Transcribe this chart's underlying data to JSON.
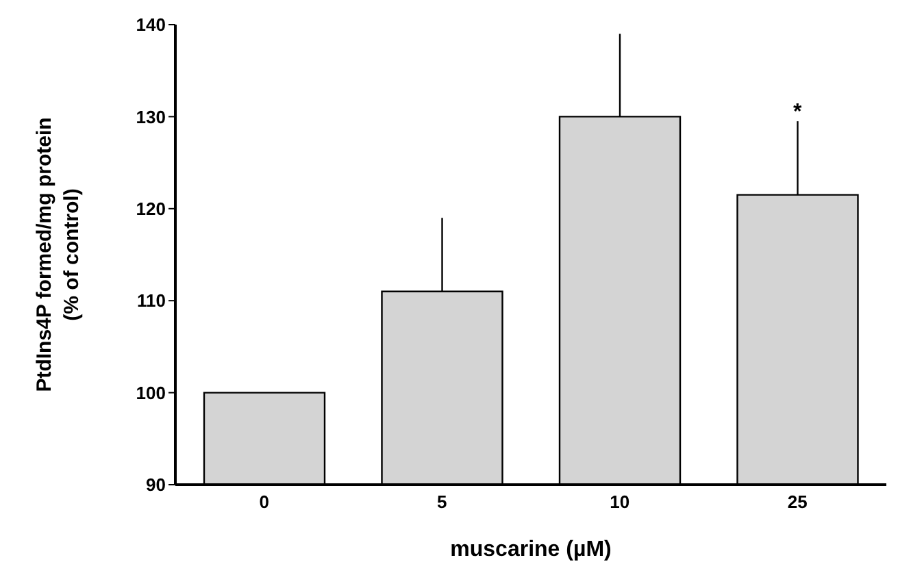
{
  "chart_data": {
    "type": "bar",
    "categories": [
      "0",
      "5",
      "10",
      "25"
    ],
    "values": [
      100,
      111,
      130,
      121.5
    ],
    "errors": [
      null,
      [
        111,
        119
      ],
      [
        130,
        139
      ],
      [
        121.5,
        129.5
      ]
    ],
    "color": "#d4d4d4",
    "xlabel": "muscarine (µM)",
    "ylabel": "PtdIns4P formed/mg protein\n(% of control)",
    "ylim": [
      90,
      140
    ],
    "yticks": [
      90,
      100,
      110,
      120,
      130,
      140
    ],
    "annotations": [
      {
        "text": "*",
        "x": "25",
        "y": 129.5
      }
    ],
    "grid": false,
    "legend": false
  }
}
